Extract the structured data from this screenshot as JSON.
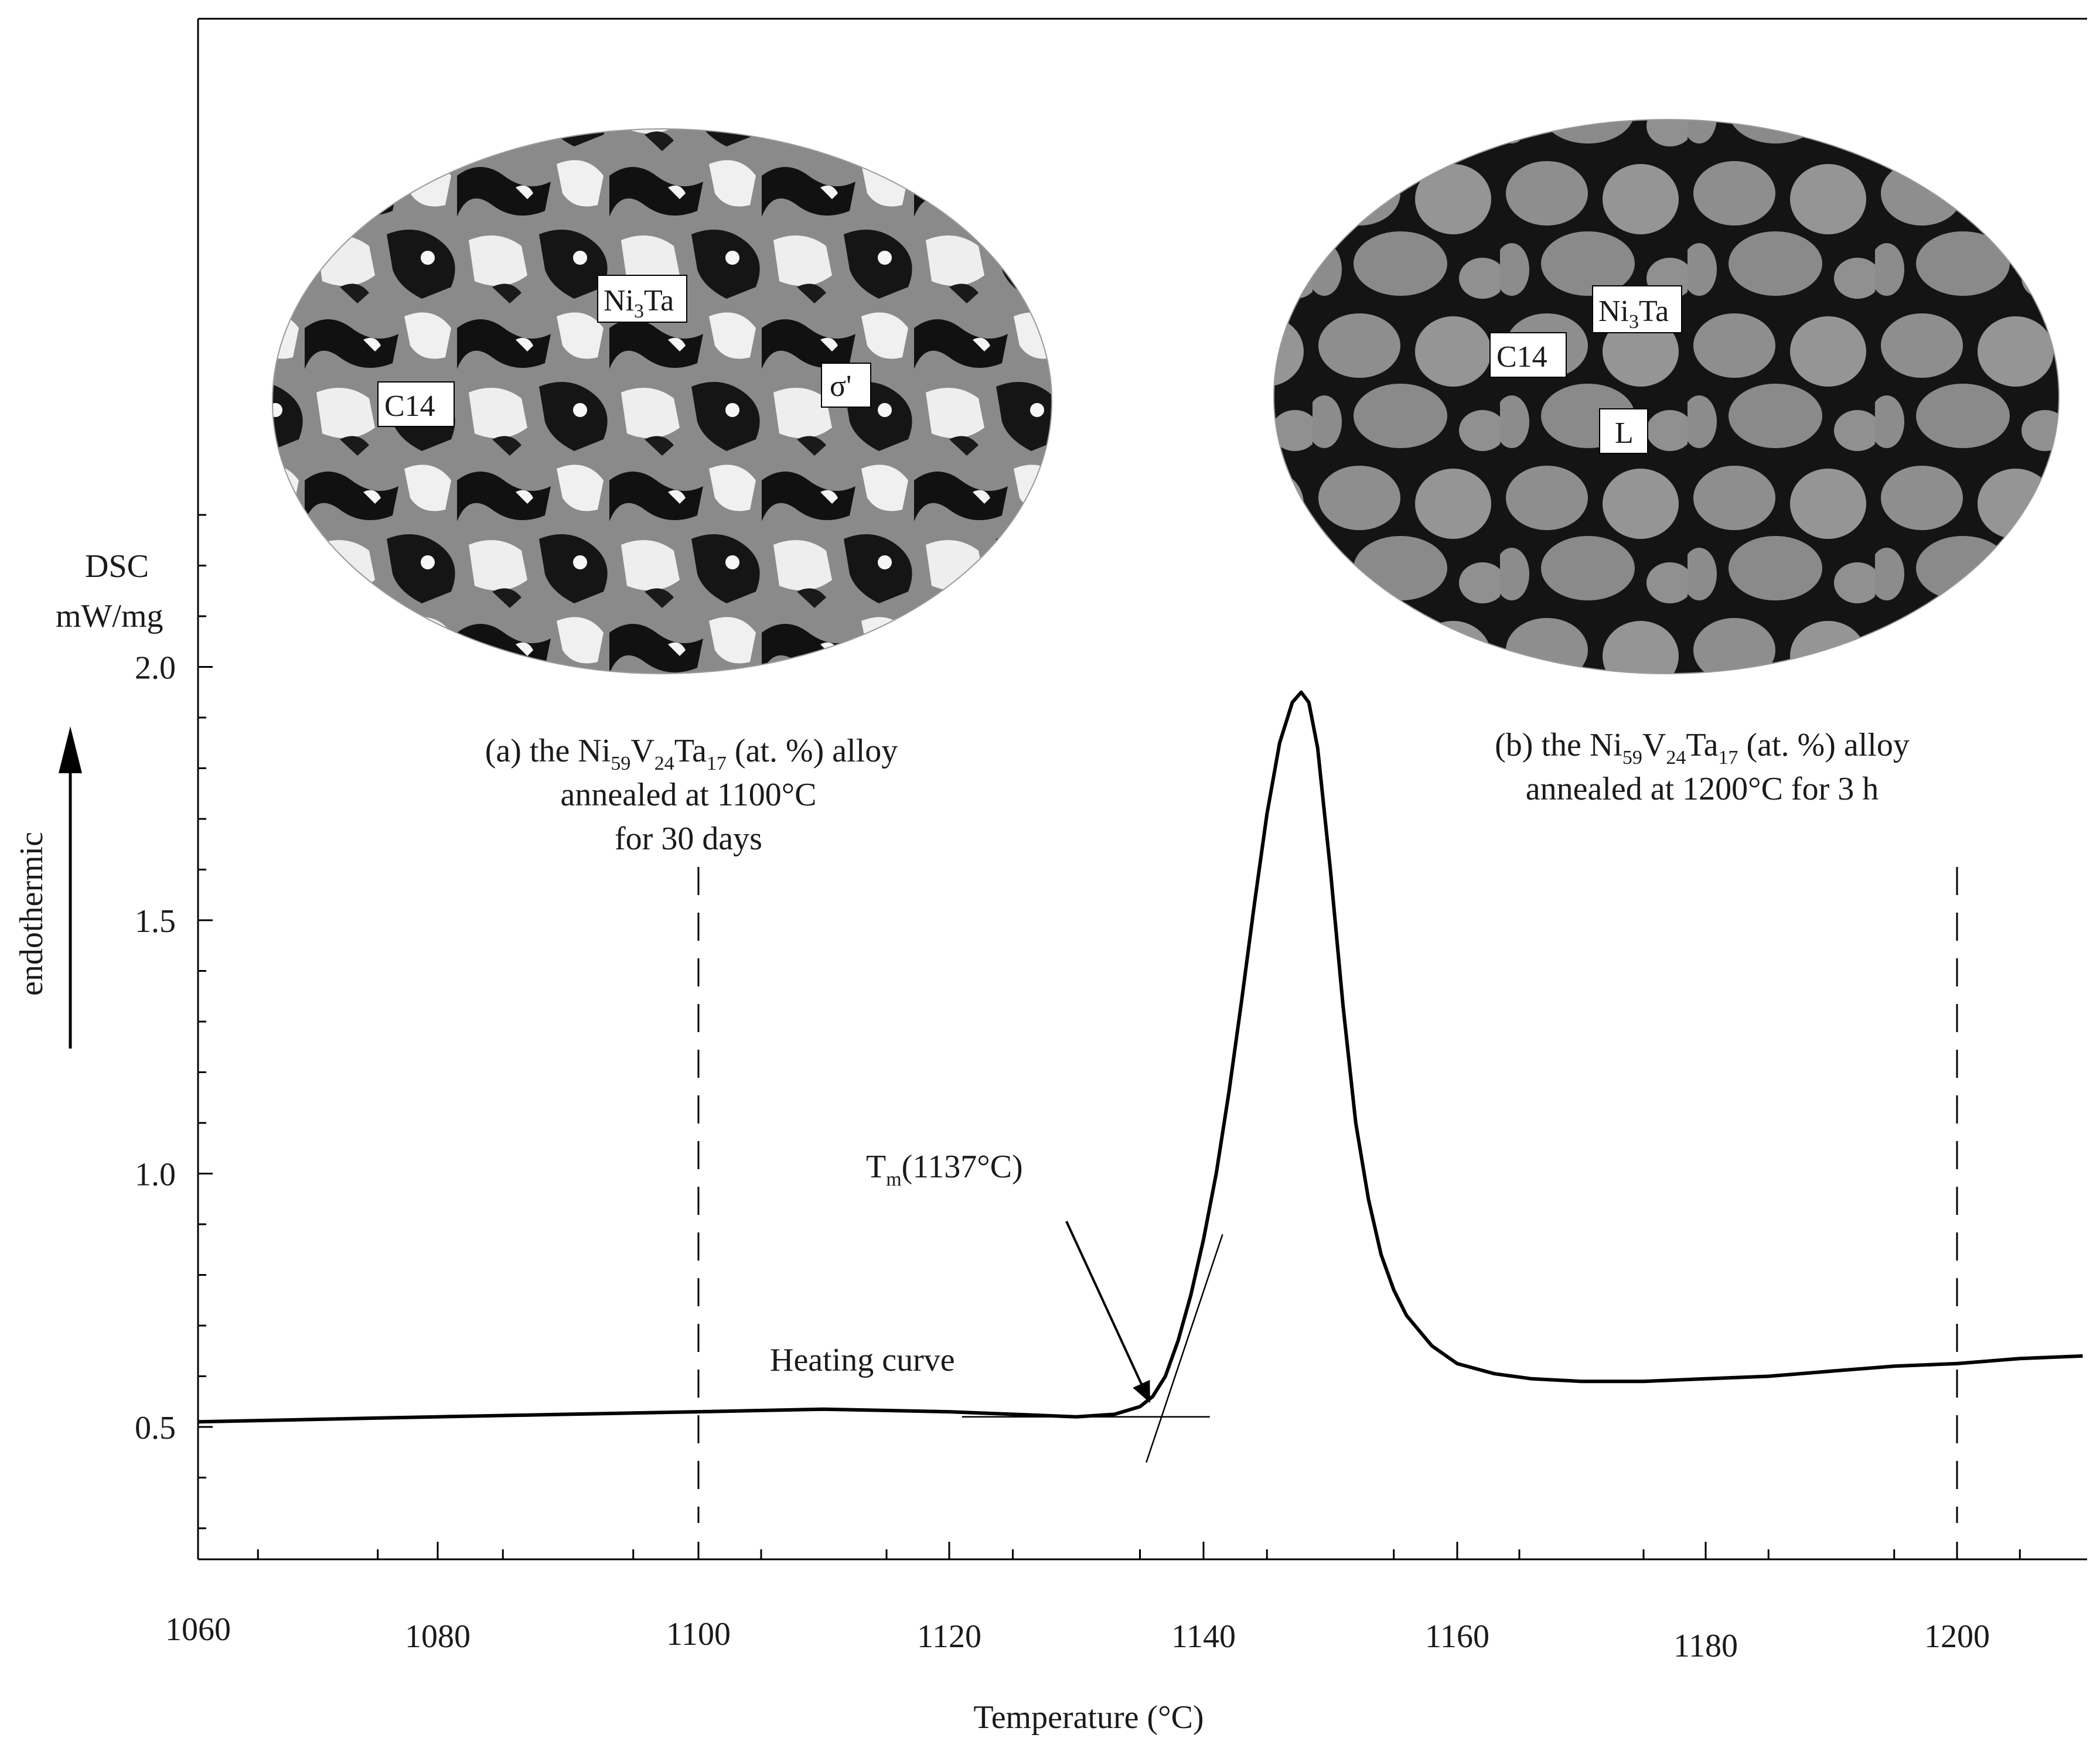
{
  "chart_data": {
    "type": "line",
    "xlabel": "Temperature (°C)",
    "ylabel_lines": [
      "DSC",
      "mW/mg"
    ],
    "endothermic_label": "endothermic",
    "xlim": [
      1060,
      2110
    ],
    "ylim": [
      0.2,
      2.4
    ],
    "x_ticks": [
      1060,
      1080,
      1100,
      1120,
      1140,
      1160,
      1180,
      1200
    ],
    "y_ticks": [
      "0.5",
      "1.0",
      "1.5",
      "2.0"
    ],
    "series": [
      {
        "x": [
          1060,
          1070,
          1080,
          1090,
          1100,
          1110,
          1120,
          1125,
          1130,
          1133,
          1135,
          1136,
          1137,
          1138,
          1139,
          1140,
          1141,
          1142,
          1143,
          1144,
          1145,
          1146,
          1147,
          1147.7,
          1148.3,
          1149,
          1150,
          1151,
          1152,
          1153,
          1154,
          1155,
          1156,
          1158,
          1160,
          1163,
          1166,
          1170,
          1175,
          1180,
          1185,
          1190,
          1195,
          1200,
          1205,
          1210
        ],
        "y": [
          0.51,
          0.515,
          0.52,
          0.525,
          0.53,
          0.535,
          0.53,
          0.525,
          0.52,
          0.525,
          0.54,
          0.56,
          0.6,
          0.67,
          0.76,
          0.87,
          1.0,
          1.16,
          1.34,
          1.53,
          1.71,
          1.85,
          1.93,
          1.95,
          1.93,
          1.84,
          1.6,
          1.33,
          1.1,
          0.95,
          0.84,
          0.77,
          0.72,
          0.66,
          0.625,
          0.605,
          0.595,
          0.59,
          0.59,
          0.595,
          0.6,
          0.61,
          0.62,
          0.625,
          0.635,
          0.64
        ]
      }
    ],
    "dashed_lines_x": [
      1100,
      1200
    ],
    "onset": {
      "label_main": "T",
      "label_sub": "m",
      "label_rest": "(1137°C)",
      "point": {
        "x": 1136,
        "y": 0.54
      },
      "baseline_tangent": {
        "x1": 1121,
        "y1": 0.52,
        "x2": 1140.5,
        "y2": 0.52
      },
      "slope_tangent": {
        "x1": 1135.5,
        "y1": 0.43,
        "x2": 1141.5,
        "y2": 0.88
      }
    },
    "annotations": {
      "heating_curve": "Heating curve",
      "panel_a": {
        "line1_parts": [
          "(a) the Ni",
          "59",
          "V",
          "24",
          "Ta",
          "17",
          " (at. %) alloy"
        ],
        "line2": "annealed at 1100°C",
        "line3": "for 30 days"
      },
      "panel_b": {
        "line1_parts": [
          "(b) the Ni",
          "59",
          "V",
          "24",
          "Ta",
          "17",
          " (at. %) alloy"
        ],
        "line2": "annealed at 1200°C for 3 h"
      }
    },
    "micrograph_a_labels": {
      "ni3ta_main": "Ni",
      "ni3ta_sub": "3",
      "ni3ta_rest": "Ta",
      "c14": "C14",
      "sigma": "σ'"
    },
    "micrograph_b_labels": {
      "ni3ta_main": "Ni",
      "ni3ta_sub": "3",
      "ni3ta_rest": "Ta",
      "c14": "C14",
      "liquid": "L"
    }
  }
}
